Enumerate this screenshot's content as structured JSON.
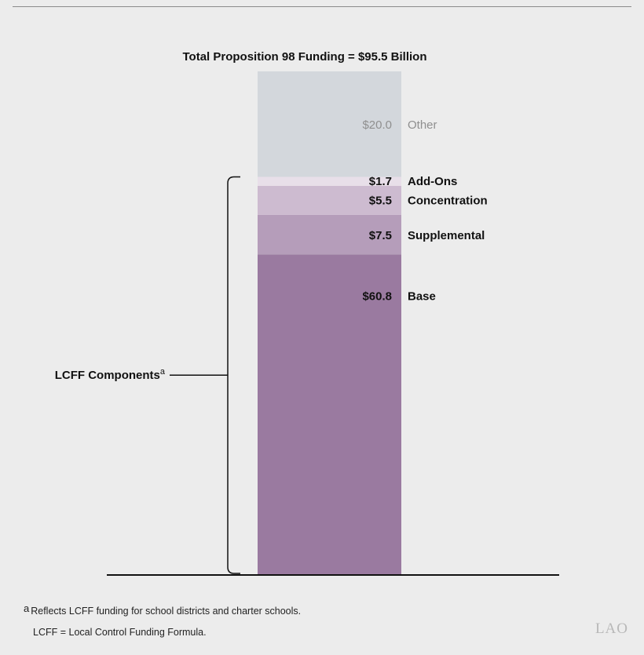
{
  "chart_data": {
    "type": "bar",
    "stacked": true,
    "title": "Total Proposition 98 Funding = $95.5 Billion",
    "categories": [
      ""
    ],
    "series": [
      {
        "name": "Base",
        "value": 60.8,
        "value_label": "$60.8",
        "color": "#9a7aa0",
        "group": "LCFF"
      },
      {
        "name": "Supplemental",
        "value": 7.5,
        "value_label": "$7.5",
        "color": "#b59dba",
        "group": "LCFF"
      },
      {
        "name": "Concentration",
        "value": 5.5,
        "value_label": "$5.5",
        "color": "#cdbbd0",
        "group": "LCFF"
      },
      {
        "name": "Add-Ons",
        "value": 1.7,
        "value_label": "$1.7",
        "color": "#e8dfe9",
        "group": "LCFF"
      },
      {
        "name": "Other",
        "value": 20.0,
        "value_label": "$20.0",
        "color": "#d3d7dc",
        "group": "other"
      }
    ],
    "total": 95.5,
    "ylim": [
      0,
      95.5
    ],
    "grid": false,
    "legend": "none",
    "bracket_label": "LCFF Components",
    "bracket_label_sup": "a"
  },
  "footnotes": {
    "a_marker": "a",
    "a_text": "Reflects LCFF funding for school districts and charter schools.",
    "abbrev": "LCFF = Local Control Funding Formula."
  },
  "logo_text": "LAO"
}
